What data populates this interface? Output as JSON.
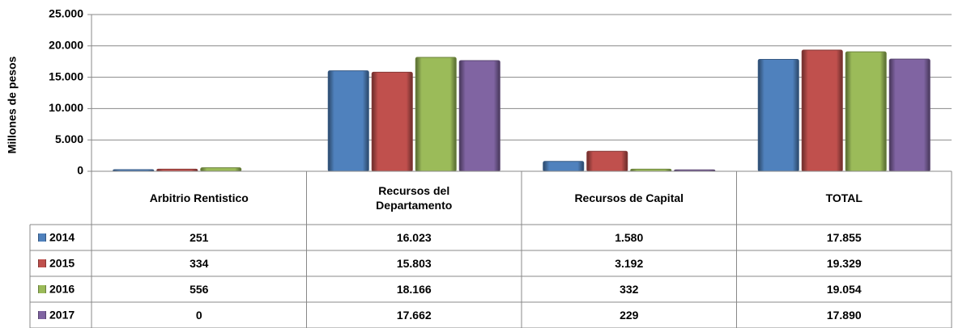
{
  "chart_data": {
    "type": "bar",
    "y_label": "Millones de pesos",
    "categories": [
      "Arbitrio Rentistico",
      "Recursos del Departamento",
      "Recursos de Capital",
      "TOTAL"
    ],
    "series": [
      {
        "name": "2014",
        "color": "#4f81bd",
        "values": [
          251,
          16023,
          1580,
          17855
        ],
        "value_labels": [
          "251",
          "16.023",
          "1.580",
          "17.855"
        ]
      },
      {
        "name": "2015",
        "color": "#c0504d",
        "values": [
          334,
          15803,
          3192,
          19329
        ],
        "value_labels": [
          "334",
          "15.803",
          "3.192",
          "19.329"
        ]
      },
      {
        "name": "2016",
        "color": "#9bbb59",
        "values": [
          556,
          18166,
          332,
          19054
        ],
        "value_labels": [
          "556",
          "18.166",
          "332",
          "19.054"
        ]
      },
      {
        "name": "2017",
        "color": "#8064a2",
        "values": [
          0,
          17662,
          229,
          17890
        ],
        "value_labels": [
          "0",
          "17.662",
          "229",
          "17.890"
        ]
      }
    ],
    "ylim": [
      0,
      25000
    ],
    "yticks": [
      0,
      {
        "value": 5000,
        "label": "5.000"
      },
      {
        "value": 10000,
        "label": "10.000"
      },
      {
        "value": 15000,
        "label": "15.000"
      },
      {
        "value": 20000,
        "label": "20.000"
      },
      {
        "value": 25000,
        "label": "25.000"
      }
    ],
    "grid": true
  }
}
